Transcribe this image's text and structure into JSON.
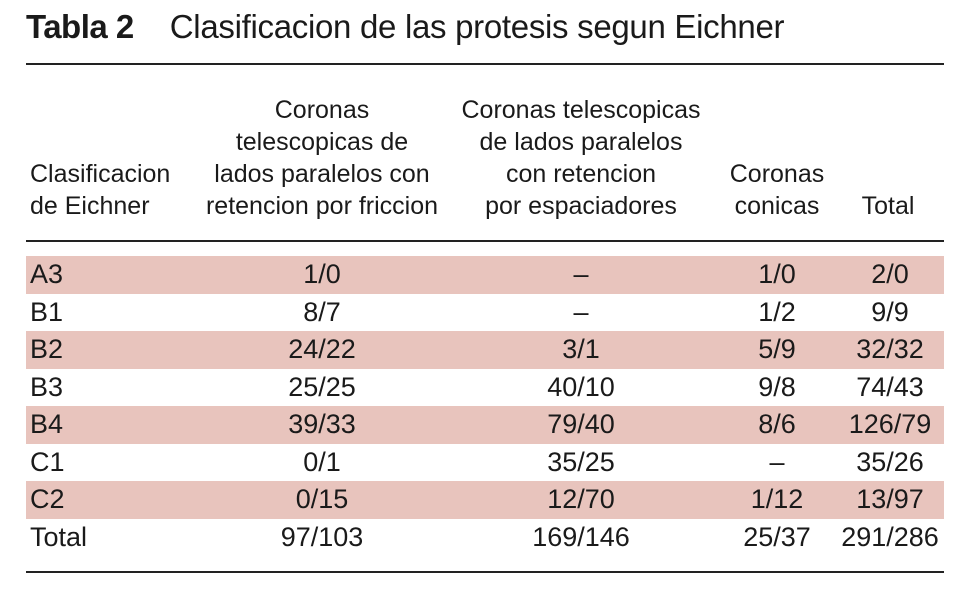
{
  "title": {
    "label": "Tabla 2",
    "text": "Clasificacion de las protesis segun Eichner"
  },
  "columns": {
    "clasificacion": [
      "Clasificacion",
      "de Eichner"
    ],
    "friccion": [
      "Coronas",
      "telescopicas de",
      "lados paralelos con",
      "retencion por friccion"
    ],
    "espaciadores": [
      "Coronas telescopicas",
      "de lados paralelos",
      "con retencion",
      "por espaciadores"
    ],
    "conicas": [
      "Coronas",
      "conicas"
    ],
    "total": [
      "Total"
    ]
  },
  "rows": [
    {
      "label": "A3",
      "friccion": "1/0",
      "espaciadores": "–",
      "conicas": "1/0",
      "total": "2/0"
    },
    {
      "label": "B1",
      "friccion": "8/7",
      "espaciadores": "–",
      "conicas": "1/2",
      "total": "9/9"
    },
    {
      "label": "B2",
      "friccion": "24/22",
      "espaciadores": "3/1",
      "conicas": "5/9",
      "total": "32/32"
    },
    {
      "label": "B3",
      "friccion": "25/25",
      "espaciadores": "40/10",
      "conicas": "9/8",
      "total": "74/43"
    },
    {
      "label": "B4",
      "friccion": "39/33",
      "espaciadores": "79/40",
      "conicas": "8/6",
      "total": "126/79"
    },
    {
      "label": "C1",
      "friccion": "0/1",
      "espaciadores": "35/25",
      "conicas": "–",
      "total": "35/26"
    },
    {
      "label": "C2",
      "friccion": "0/15",
      "espaciadores": "12/70",
      "conicas": "1/12",
      "total": "13/97"
    },
    {
      "label": "Total",
      "friccion": "97/103",
      "espaciadores": "169/146",
      "conicas": "25/37",
      "total": "291/286"
    }
  ],
  "colors": {
    "row_shade": "#e8c4bd",
    "text": "#1a1a1a",
    "rule": "#222222"
  }
}
